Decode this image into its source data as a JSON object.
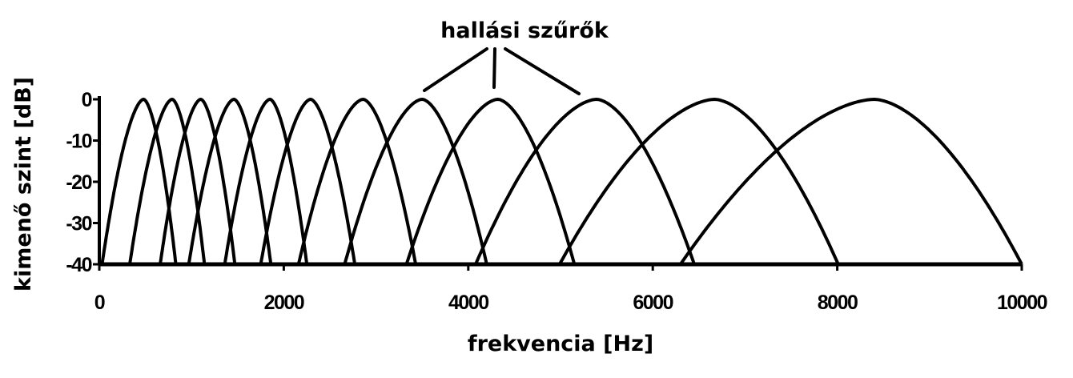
{
  "chart_data": {
    "type": "line",
    "title": "hallási szűrők",
    "xlabel": "frekvencia [Hz]",
    "ylabel": "kimenő szint [dB]",
    "xlim": [
      0,
      10000
    ],
    "ylim": [
      -40,
      0
    ],
    "xticks": [
      "0",
      "2000",
      "4000",
      "6000",
      "8000",
      "10000"
    ],
    "xtick_values": [
      0,
      2000,
      4000,
      6000,
      8000,
      10000
    ],
    "yticks": [
      "0",
      "-10",
      "-20",
      "-30",
      "-40"
    ],
    "ytick_values": [
      0,
      -10,
      -20,
      -30,
      -40
    ],
    "grid": false,
    "line_color": "#000000",
    "filters": [
      {
        "start": 30,
        "peak": 480,
        "end": 830
      },
      {
        "start": 330,
        "peak": 790,
        "end": 1140
      },
      {
        "start": 660,
        "peak": 1100,
        "end": 1470
      },
      {
        "start": 970,
        "peak": 1460,
        "end": 1860
      },
      {
        "start": 1360,
        "peak": 1850,
        "end": 2250
      },
      {
        "start": 1750,
        "peak": 2290,
        "end": 2770
      },
      {
        "start": 2160,
        "peak": 2860,
        "end": 3430
      },
      {
        "start": 2660,
        "peak": 3500,
        "end": 4200
      },
      {
        "start": 3330,
        "peak": 4320,
        "end": 5150
      },
      {
        "start": 4080,
        "peak": 5390,
        "end": 6450
      },
      {
        "start": 4990,
        "peak": 6670,
        "end": 8010
      },
      {
        "start": 6300,
        "peak": 8400,
        "end": 10000
      }
    ],
    "peak_level_db": 0,
    "floor_level_db": -40
  }
}
